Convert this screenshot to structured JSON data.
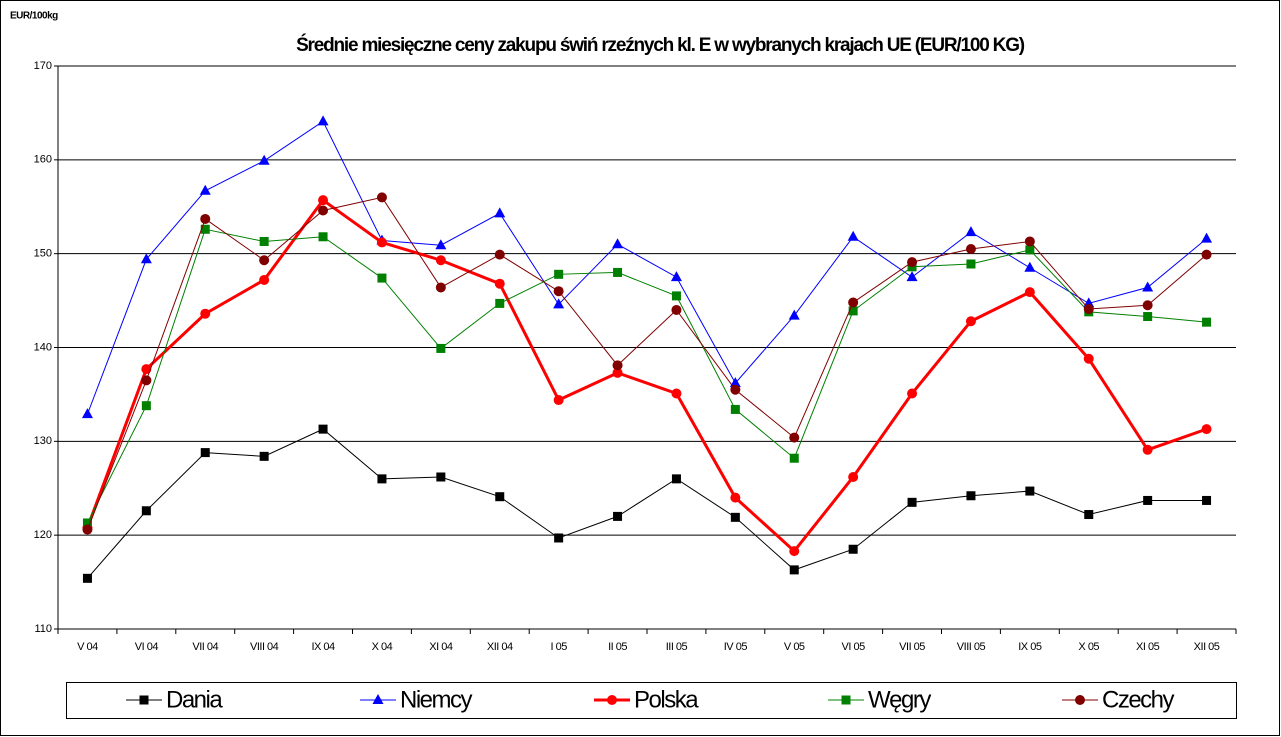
{
  "chart_data": {
    "type": "line",
    "title": "Średnie miesięczne ceny zakupu świń rzeźnych kl. E w wybranych krajach UE (EUR/100 KG)",
    "y_label": "EUR/100kg",
    "categories": [
      "V 04",
      "VI 04",
      "VII 04",
      "VIII 04",
      "IX 04",
      "X 04",
      "XI 04",
      "XII 04",
      "I 05",
      "II 05",
      "III 05",
      "IV 05",
      "V 05",
      "VI 05",
      "VII 05",
      "VIII 05",
      "IX 05",
      "X 05",
      "XI 05",
      "XII 05"
    ],
    "series": [
      {
        "name": "Dania",
        "color": "#000000",
        "marker": "square",
        "linewidth": 1,
        "values": [
          115.4,
          122.6,
          128.8,
          128.4,
          131.3,
          126.0,
          126.2,
          124.1,
          119.7,
          122.0,
          126.0,
          121.9,
          116.3,
          118.5,
          123.5,
          124.2,
          124.7,
          122.2,
          123.7,
          123.7
        ]
      },
      {
        "name": "Niemcy",
        "color": "#0000ff",
        "marker": "triangle",
        "linewidth": 1,
        "values": [
          132.9,
          149.4,
          156.7,
          159.9,
          164.1,
          151.4,
          150.9,
          154.3,
          144.6,
          151.0,
          147.5,
          136.2,
          143.4,
          151.8,
          147.5,
          152.3,
          148.5,
          144.7,
          146.4,
          151.6
        ]
      },
      {
        "name": "Polska",
        "color": "#ff0000",
        "marker": "circle",
        "linewidth": 3,
        "values": [
          120.8,
          137.7,
          143.6,
          147.2,
          155.7,
          151.2,
          149.3,
          146.8,
          134.4,
          137.3,
          135.1,
          124.0,
          118.3,
          126.2,
          135.1,
          142.8,
          145.9,
          138.8,
          129.1,
          131.3
        ]
      },
      {
        "name": "Węgry",
        "color": "#008000",
        "marker": "square",
        "linewidth": 1,
        "values": [
          121.3,
          133.8,
          152.6,
          151.3,
          151.8,
          147.4,
          139.9,
          144.7,
          147.8,
          148.0,
          145.5,
          133.4,
          128.2,
          143.9,
          148.6,
          148.9,
          150.4,
          143.8,
          143.3,
          142.7
        ]
      },
      {
        "name": "Czechy",
        "color": "#800000",
        "marker": "circle",
        "linewidth": 1,
        "values": [
          120.6,
          136.5,
          153.7,
          149.3,
          154.6,
          156.0,
          146.4,
          149.9,
          146.0,
          138.1,
          144.0,
          135.5,
          130.4,
          144.8,
          149.1,
          150.5,
          151.3,
          144.1,
          144.5,
          149.9
        ]
      }
    ],
    "ylim": [
      110,
      170
    ],
    "yticks": [
      110,
      120,
      130,
      140,
      150,
      160,
      170
    ],
    "grid": true,
    "legend": "bottom"
  }
}
